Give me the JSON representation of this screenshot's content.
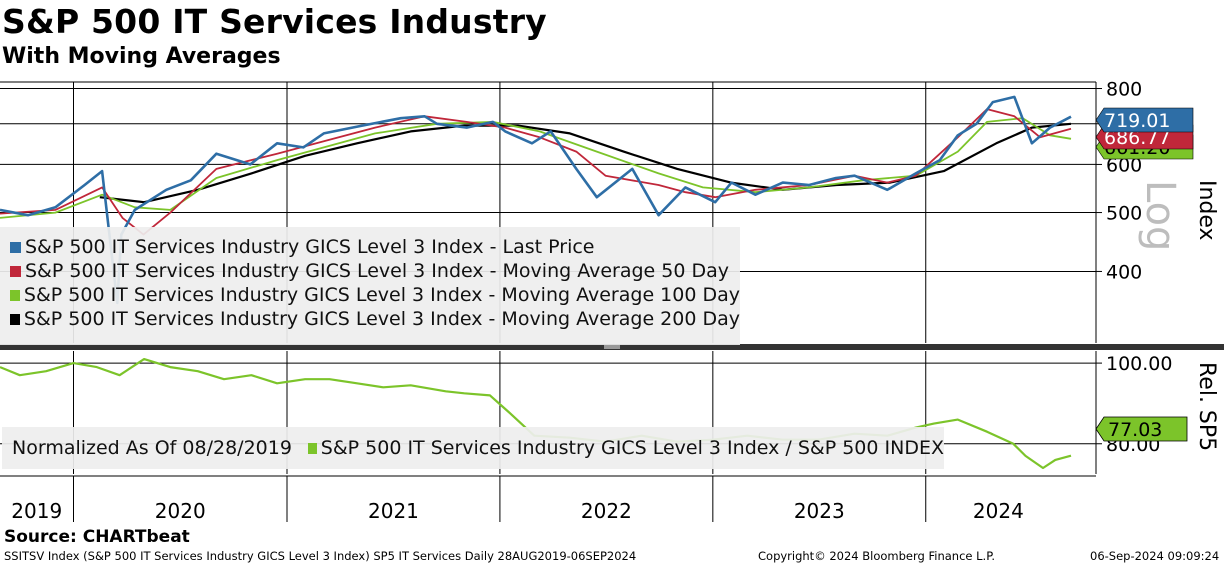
{
  "header": {
    "title": "S&P 500 IT Services Industry",
    "subtitle": "With Moving Averages"
  },
  "chart_data": [
    {
      "type": "line",
      "panel": "price",
      "ylabel": "Index",
      "scale_label": "Log",
      "yscale": "log",
      "ylim": [
        305,
        820
      ],
      "yticks": [
        400,
        500,
        600,
        700,
        800
      ],
      "xlim": [
        "2019-08-28",
        "2024-09-06"
      ],
      "x_tick_labels": [
        "2019",
        "2020",
        "2021",
        "2022",
        "2023",
        "2024"
      ],
      "last_value_labels": [
        "719.01",
        "686.77",
        "661.20"
      ],
      "series": [
        {
          "name": "S&P 500 IT Services Industry GICS Level 3 Index - Last Price",
          "color": "#2e6ea6",
          "x": [
            "2019-08-28",
            "2019-10-15",
            "2019-12-01",
            "2020-01-20",
            "2020-02-19",
            "2020-03-16",
            "2020-03-23",
            "2020-04-15",
            "2020-06-08",
            "2020-07-20",
            "2020-09-02",
            "2020-10-30",
            "2020-12-15",
            "2021-01-29",
            "2021-03-05",
            "2021-05-10",
            "2021-07-15",
            "2021-08-25",
            "2021-09-15",
            "2021-11-05",
            "2021-12-20",
            "2022-01-10",
            "2022-02-25",
            "2022-03-29",
            "2022-05-12",
            "2022-06-16",
            "2022-08-16",
            "2022-09-30",
            "2022-11-15",
            "2023-01-05",
            "2023-02-02",
            "2023-03-15",
            "2023-05-01",
            "2023-06-15",
            "2023-07-31",
            "2023-09-01",
            "2023-10-27",
            "2023-12-15",
            "2024-01-25",
            "2024-02-25",
            "2024-03-28",
            "2024-04-25",
            "2024-06-01",
            "2024-07-01",
            "2024-08-01",
            "2024-09-06"
          ],
          "y": [
            505,
            495,
            510,
            555,
            585,
            355,
            460,
            505,
            545,
            565,
            625,
            600,
            650,
            640,
            675,
            695,
            715,
            720,
            700,
            690,
            705,
            680,
            650,
            680,
            590,
            530,
            590,
            495,
            550,
            520,
            560,
            535,
            560,
            555,
            570,
            575,
            545,
            580,
            610,
            670,
            700,
            760,
            775,
            650,
            690,
            719.01
          ]
        },
        {
          "name": "S&P 500 IT Services Industry GICS Level 3 Index - Moving Average 50 Day",
          "color": "#c0273a",
          "x": [
            "2019-08-28",
            "2019-12-01",
            "2020-02-19",
            "2020-03-25",
            "2020-04-30",
            "2020-06-15",
            "2020-09-02",
            "2020-12-15",
            "2021-03-05",
            "2021-06-01",
            "2021-08-25",
            "2021-11-05",
            "2022-01-10",
            "2022-03-10",
            "2022-05-12",
            "2022-07-01",
            "2022-09-30",
            "2022-11-15",
            "2023-01-05",
            "2023-03-15",
            "2023-06-15",
            "2023-09-01",
            "2023-10-27",
            "2023-12-15",
            "2024-02-25",
            "2024-04-15",
            "2024-06-01",
            "2024-07-15",
            "2024-09-06"
          ],
          "y": [
            498,
            505,
            550,
            490,
            460,
            500,
            590,
            625,
            655,
            690,
            720,
            705,
            690,
            665,
            630,
            575,
            555,
            540,
            530,
            545,
            555,
            575,
            560,
            575,
            665,
            740,
            720,
            665,
            686.77
          ]
        },
        {
          "name": "S&P 500 IT Services Industry GICS Level 3 Index - Moving Average 100 Day",
          "color": "#7cc42a",
          "x": [
            "2019-08-28",
            "2019-12-01",
            "2020-02-19",
            "2020-04-15",
            "2020-06-15",
            "2020-09-02",
            "2020-12-15",
            "2021-03-05",
            "2021-06-01",
            "2021-09-15",
            "2021-12-20",
            "2022-03-10",
            "2022-06-16",
            "2022-09-30",
            "2022-12-15",
            "2023-03-15",
            "2023-06-15",
            "2023-09-15",
            "2023-12-15",
            "2024-02-25",
            "2024-04-15",
            "2024-06-15",
            "2024-08-01",
            "2024-09-06"
          ],
          "y": [
            490,
            500,
            535,
            510,
            505,
            570,
            610,
            640,
            675,
            700,
            705,
            680,
            630,
            580,
            550,
            540,
            550,
            565,
            575,
            630,
            705,
            715,
            670,
            661.2
          ]
        },
        {
          "name": "S&P 500 IT Services Industry GICS Level 3 Index - Moving Average 200 Day",
          "color": "#000000",
          "x": [
            "2020-02-15",
            "2020-05-01",
            "2020-08-01",
            "2020-11-01",
            "2021-02-01",
            "2021-05-01",
            "2021-08-01",
            "2021-11-01",
            "2022-02-01",
            "2022-05-01",
            "2022-08-01",
            "2022-11-01",
            "2023-02-01",
            "2023-05-01",
            "2023-08-01",
            "2023-11-01",
            "2024-02-01",
            "2024-05-01",
            "2024-07-01",
            "2024-09-06"
          ],
          "y": [
            530,
            520,
            545,
            580,
            620,
            650,
            680,
            695,
            695,
            675,
            630,
            590,
            560,
            545,
            555,
            560,
            585,
            650,
            690,
            700
          ]
        }
      ]
    },
    {
      "type": "line",
      "panel": "relative",
      "ylabel": "Rel. SP5",
      "ylim": [
        72.5,
        103
      ],
      "yticks": [
        80,
        100
      ],
      "ytick_labels": [
        "80.00",
        "100.00"
      ],
      "last_value_label": "77.03",
      "series": [
        {
          "name": "S&P 500 IT Services Industry GICS Level 3 Index / S&P 500 INDEX",
          "color": "#7cc42a",
          "x": [
            "2019-08-28",
            "2019-10-01",
            "2019-11-15",
            "2020-01-01",
            "2020-02-10",
            "2020-03-20",
            "2020-05-01",
            "2020-06-15",
            "2020-08-01",
            "2020-09-15",
            "2020-11-01",
            "2020-12-15",
            "2021-02-01",
            "2021-03-15",
            "2021-05-01",
            "2021-06-15",
            "2021-08-01",
            "2021-09-30",
            "2021-11-01",
            "2021-12-15",
            "2022-01-15",
            "2022-03-01",
            "2022-05-01",
            "2022-07-01",
            "2022-09-01",
            "2022-11-01",
            "2023-01-01",
            "2023-03-01",
            "2023-05-01",
            "2023-07-01",
            "2023-09-01",
            "2023-10-27",
            "2023-12-15",
            "2024-01-15",
            "2024-02-25",
            "2024-04-15",
            "2024-05-30",
            "2024-06-20",
            "2024-07-20",
            "2024-08-10",
            "2024-09-06"
          ],
          "y": [
            99,
            97,
            98,
            100,
            99,
            97,
            101,
            99,
            98,
            96,
            97,
            95,
            96,
            96,
            95,
            94,
            94.5,
            93,
            92.5,
            92,
            88,
            82,
            81.5,
            80.5,
            82,
            80.5,
            81,
            82,
            81,
            81,
            82.5,
            82,
            84,
            85,
            86,
            83,
            80,
            77,
            74,
            76,
            77.03
          ]
        }
      ],
      "note": "Normalized As Of 08/28/2019"
    }
  ],
  "footer": {
    "source": "Source: CHARTbeat",
    "ticker_info": "SSITSV Index (S&P 500 IT Services Industry GICS Level 3 Index) SP5 IT Services  Daily 28AUG2019-06SEP2024",
    "copyright": "Copyright© 2024 Bloomberg Finance L.P.",
    "timestamp": "06-Sep-2024 09:09:24"
  },
  "colors": {
    "last_price": "#2e6ea6",
    "ma50": "#c0273a",
    "ma100": "#7cc42a",
    "ma200": "#000000"
  }
}
